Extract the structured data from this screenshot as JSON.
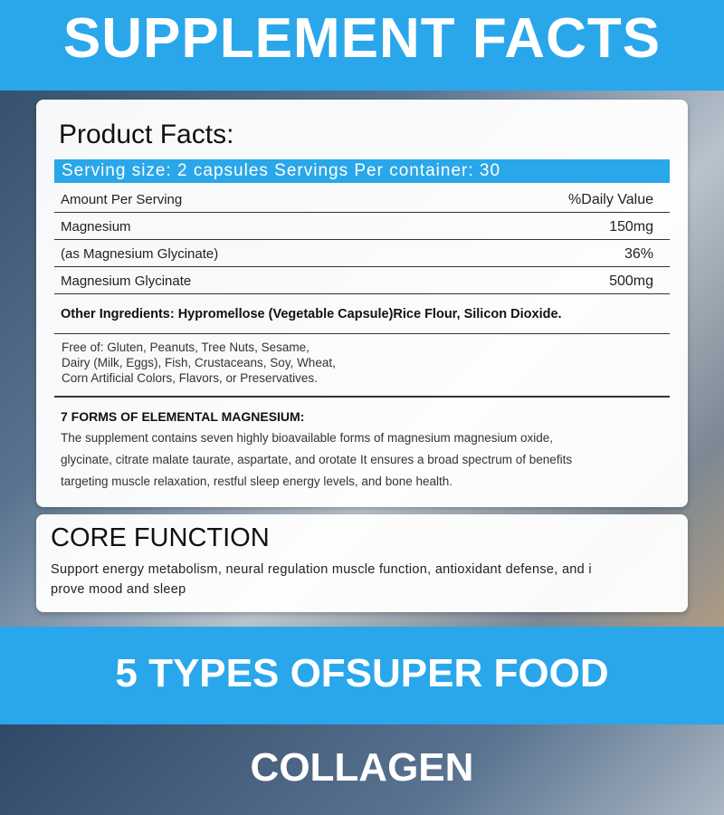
{
  "header": {
    "title": "SUPPLEMENT FACTS"
  },
  "facts": {
    "title": "Product Facts:",
    "serving": "Serving size: 2 capsules Servings Per container: 30",
    "rows": [
      [
        "Amount Per Serving",
        "%Daily Value"
      ],
      [
        "Magnesium",
        "150mg"
      ],
      [
        "(as Magnesium Glycinate)",
        "36%"
      ],
      [
        "Magnesium Glycinate",
        "500mg"
      ]
    ],
    "other_ingredients": "Other Ingredients: Hypromellose (Vegetable Capsule)Rice Flour, Silicon Dioxide.",
    "free_of": [
      "Free of: Gluten, Peanuts, Tree Nuts, Sesame,",
      "Dairy (Milk, Eggs), Fish, Crustaceans, Soy, Wheat,",
      "Corn Artificial Colors, Flavors, or Preservatives."
    ],
    "forms_title": "7 FORMS OF ELEMENTAL MAGNESIUM:",
    "forms_text": [
      "The supplement contains seven highly bioavailable forms of magnesium magnesium oxide,",
      "glycinate, citrate malate taurate, aspartate, and orotate It ensures a broad spectrum of benefits",
      "targeting muscle relaxation, restful sleep energy levels, and bone health."
    ]
  },
  "core": {
    "title": "CORE FUNCTION",
    "text": [
      "Support energy metabolism, neural regulation muscle function, antioxidant defense, and i",
      "prove mood and sleep"
    ]
  },
  "footer": {
    "title": "5 TYPES OFSUPER FOOD COLLAGEN"
  }
}
